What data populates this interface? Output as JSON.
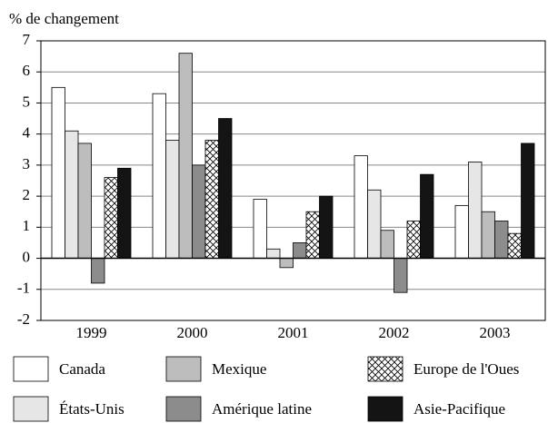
{
  "chart_data": {
    "type": "bar",
    "y_label": "% de changement",
    "categories": [
      "1999",
      "2000",
      "2001",
      "2002",
      "2003"
    ],
    "series": [
      {
        "name": "Canada",
        "color": "#ffffff",
        "values": [
          5.5,
          5.3,
          1.9,
          3.3,
          1.7
        ]
      },
      {
        "name": "États-Unis",
        "color": "#e6e6e6",
        "values": [
          4.1,
          3.8,
          0.3,
          2.2,
          3.1
        ]
      },
      {
        "name": "Mexique",
        "color": "#bdbdbd",
        "values": [
          3.7,
          6.6,
          -0.3,
          0.9,
          1.5
        ]
      },
      {
        "name": "Amérique latine",
        "color": "#8c8c8c",
        "values": [
          -0.8,
          3.0,
          0.5,
          -1.1,
          1.2
        ]
      },
      {
        "name": "Europe de l'Oues",
        "color": "hatch",
        "values": [
          2.6,
          3.8,
          1.5,
          1.2,
          0.8
        ]
      },
      {
        "name": "Asie-Pacifique",
        "color": "#141414",
        "values": [
          2.9,
          4.5,
          2.0,
          2.7,
          3.7
        ]
      }
    ],
    "ylim": [
      -2,
      7
    ],
    "yticks": [
      -2,
      -1,
      0,
      1,
      2,
      3,
      4,
      5,
      6,
      7
    ],
    "grid": true
  }
}
